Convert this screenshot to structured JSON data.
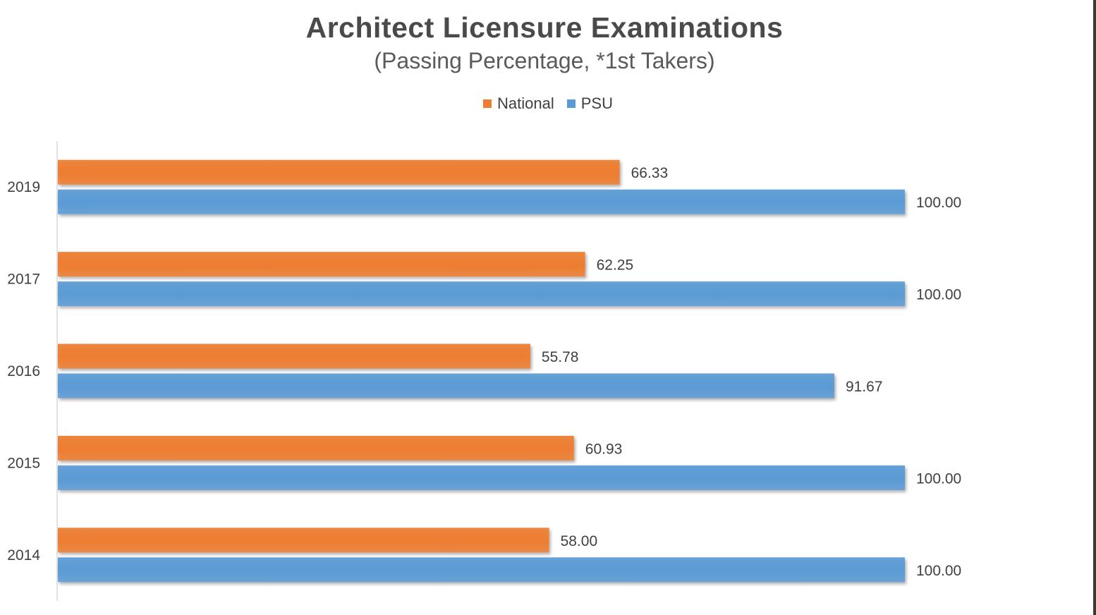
{
  "chart_data": {
    "type": "bar",
    "orientation": "horizontal",
    "title": "Architect Licensure Examinations",
    "subtitle": "(Passing Percentage, *1st Takers)",
    "categories": [
      "2019",
      "2017",
      "2016",
      "2015",
      "2014"
    ],
    "series": [
      {
        "name": "National",
        "color": "#ed7d31",
        "values": [
          66.33,
          62.25,
          55.78,
          60.93,
          58.0
        ],
        "labels": [
          "66.33",
          "62.25",
          "55.78",
          "60.93",
          "58.00"
        ]
      },
      {
        "name": "PSU",
        "color": "#5b9bd5",
        "values": [
          100.0,
          100.0,
          91.67,
          100.0,
          100.0
        ],
        "labels": [
          "100.00",
          "100.00",
          "91.67",
          "100.00",
          "100.00"
        ]
      }
    ],
    "xlim": [
      0,
      100
    ],
    "legend_position": "top",
    "grid": false,
    "data_labels": true
  }
}
